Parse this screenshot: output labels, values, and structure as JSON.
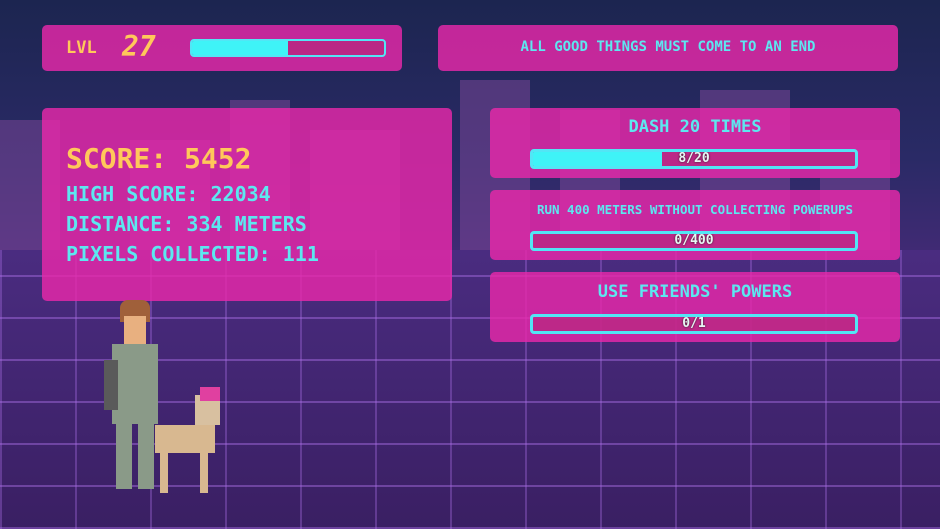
{
  "hud": {
    "level_label": "LVL",
    "level_value": "27",
    "level_progress_percent": 50,
    "message": "ALL GOOD THINGS MUST COME TO AN END"
  },
  "stats": {
    "score": "SCORE: 5452",
    "high_score": "HIGH SCORE: 22034",
    "distance": "DISTANCE: 334 METERS",
    "pixels": "PIXELS COLLECTED: 111"
  },
  "missions": [
    {
      "title": "DASH 20 TIMES",
      "progress_text": "8/20",
      "progress_percent": 40
    },
    {
      "title": "RUN 400 METERS WITHOUT COLLECTING POWERUPS",
      "progress_text": "0/400",
      "progress_percent": 0
    },
    {
      "title": "USE FRIENDS' POWERS",
      "progress_text": "0/1",
      "progress_percent": 0
    }
  ],
  "colors": {
    "panel": "#e828aa",
    "accent": "#3ff3f7",
    "gold": "#ffc85a"
  }
}
